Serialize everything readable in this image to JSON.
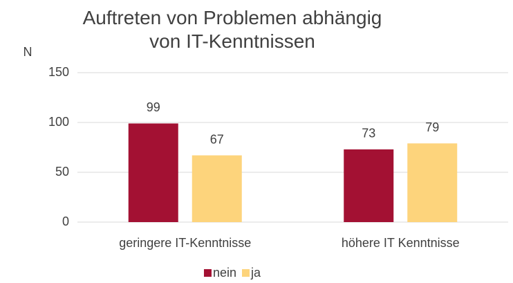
{
  "chart_data": {
    "type": "bar",
    "title": "Auftreten von Problemen abhängig von IT-Kenntnissen",
    "y_label": "N",
    "categories": [
      "geringere IT-Kenntnisse",
      "höhere IT Kenntnisse"
    ],
    "series": [
      {
        "name": "nein",
        "color": "#a31133",
        "values": [
          99,
          73
        ]
      },
      {
        "name": "ja",
        "color": "#fdd47c",
        "values": [
          67,
          79
        ]
      }
    ],
    "ylim": [
      0,
      150
    ],
    "yticks": [
      0,
      50,
      100,
      150
    ],
    "grid": true,
    "legend": "bottom"
  }
}
